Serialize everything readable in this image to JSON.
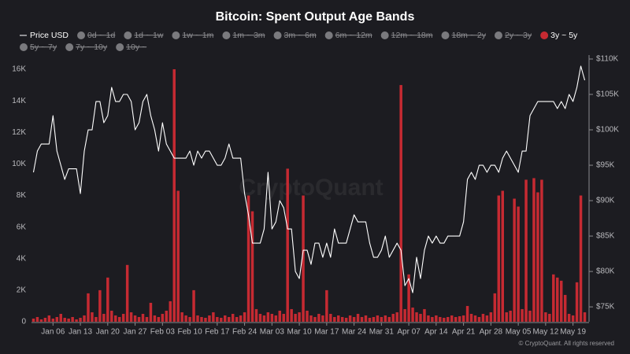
{
  "chart_data": {
    "type": "bar",
    "title": "Bitcoin: Spent Output Age Bands",
    "watermark": "CryptoQuant",
    "footer": "© CryptoQuant. All rights reserved",
    "grid": false,
    "categories": [
      null,
      null,
      null,
      null,
      null,
      "Jan 06",
      null,
      null,
      null,
      null,
      null,
      null,
      "Jan 13",
      null,
      null,
      null,
      null,
      null,
      null,
      "Jan 20",
      null,
      null,
      null,
      null,
      null,
      null,
      "Jan 27",
      null,
      null,
      null,
      null,
      null,
      null,
      "Feb 03",
      null,
      null,
      null,
      null,
      null,
      null,
      "Feb 10",
      null,
      null,
      null,
      null,
      null,
      null,
      "Feb 17",
      null,
      null,
      null,
      null,
      null,
      null,
      "Feb 24",
      null,
      null,
      null,
      null,
      null,
      null,
      "Mar 03",
      null,
      null,
      null,
      null,
      null,
      null,
      "Mar 10",
      null,
      null,
      null,
      null,
      null,
      null,
      "Mar 17",
      null,
      null,
      null,
      null,
      null,
      null,
      "Mar 24",
      null,
      null,
      null,
      null,
      null,
      null,
      "Mar 31",
      null,
      null,
      null,
      null,
      null,
      null,
      "Apr 07",
      null,
      null,
      null,
      null,
      null,
      null,
      "Apr 14",
      null,
      null,
      null,
      null,
      null,
      null,
      "Apr 21",
      null,
      null,
      null,
      null,
      null,
      null,
      "Apr 28",
      null,
      null,
      null,
      null,
      null,
      null,
      "May 05",
      null,
      null,
      null,
      null,
      null,
      null,
      "May 12",
      null,
      null,
      null,
      null,
      null,
      null,
      "May 19",
      null,
      null,
      null
    ],
    "ylim": [
      0,
      16650
    ],
    "yticks": [
      0,
      {
        "value": 2000,
        "label": "2K"
      },
      {
        "value": 4000,
        "label": "4K"
      },
      {
        "value": 6000,
        "label": "6K"
      },
      {
        "value": 8000,
        "label": "8K"
      },
      {
        "value": 10000,
        "label": "10K"
      },
      {
        "value": 12000,
        "label": "12K"
      },
      {
        "value": 14000,
        "label": "14K"
      },
      {
        "value": 16000,
        "label": "16K"
      }
    ],
    "y2lim": [
      72900,
      110000
    ],
    "y2ticks": [
      {
        "value": 75000,
        "label": "$75K"
      },
      {
        "value": 80000,
        "label": "$80K"
      },
      {
        "value": 85000,
        "label": "$85K"
      },
      {
        "value": 90000,
        "label": "$90K"
      },
      {
        "value": 95000,
        "label": "$95K"
      },
      {
        "value": 100000,
        "label": "$100K"
      },
      {
        "value": 105000,
        "label": "$105K"
      },
      {
        "value": 110000,
        "label": "$110K"
      }
    ],
    "series": [
      {
        "name": "Price USD",
        "type": "line",
        "axis": "y2",
        "color": "#ffffff",
        "visible": true,
        "values": [
          94000,
          97000,
          98000,
          98000,
          98000,
          102000,
          97000,
          95000,
          93000,
          94500,
          94500,
          94500,
          91000,
          97000,
          100000,
          100000,
          104000,
          104000,
          101000,
          102000,
          106000,
          104000,
          104000,
          105000,
          105000,
          104000,
          100000,
          101000,
          104000,
          105000,
          102000,
          100000,
          97000,
          101000,
          98000,
          97000,
          96000,
          96000,
          96000,
          96000,
          97000,
          95000,
          97000,
          96000,
          97000,
          97000,
          96000,
          95000,
          95000,
          96000,
          98000,
          96000,
          96000,
          96000,
          91000,
          88000,
          84000,
          84000,
          84000,
          86000,
          94000,
          86000,
          87000,
          90000,
          89000,
          86000,
          86000,
          80000,
          79000,
          83000,
          83000,
          81000,
          84000,
          84000,
          82000,
          84000,
          82000,
          86000,
          84000,
          84000,
          84000,
          86000,
          88000,
          87000,
          87000,
          87000,
          84000,
          82000,
          82000,
          83000,
          85000,
          82000,
          83000,
          84000,
          83000,
          78000,
          79000,
          77000,
          82000,
          79000,
          83000,
          85000,
          84000,
          85000,
          84000,
          84000,
          85000,
          85000,
          85000,
          85000,
          87000,
          93000,
          94000,
          93000,
          95000,
          95000,
          94000,
          95000,
          95000,
          94000,
          96000,
          97000,
          96000,
          95000,
          94000,
          97000,
          97000,
          102000,
          103000,
          104000,
          104000,
          104000,
          104000,
          104000,
          103000,
          104000,
          103000,
          105000,
          104000,
          106000,
          109000,
          107000
        ]
      },
      {
        "name": "0d ~ 1d",
        "color": "#8a8a8e",
        "visible": false
      },
      {
        "name": "1d ~ 1w",
        "color": "#8a8a8e",
        "visible": false
      },
      {
        "name": "1w ~ 1m",
        "color": "#8a8a8e",
        "visible": false
      },
      {
        "name": "1m ~ 3m",
        "color": "#8a8a8e",
        "visible": false
      },
      {
        "name": "3m ~ 6m",
        "color": "#8a8a8e",
        "visible": false
      },
      {
        "name": "6m ~ 12m",
        "color": "#8a8a8e",
        "visible": false
      },
      {
        "name": "12m ~ 18m",
        "color": "#8a8a8e",
        "visible": false
      },
      {
        "name": "18m ~ 2y",
        "color": "#8a8a8e",
        "visible": false
      },
      {
        "name": "2y ~ 3y",
        "color": "#8a8a8e",
        "visible": false
      },
      {
        "name": "3y ~ 5y",
        "type": "bar",
        "axis": "y",
        "color": "#c62a32",
        "visible": true,
        "values": [
          200,
          300,
          150,
          250,
          400,
          200,
          300,
          500,
          250,
          200,
          300,
          150,
          250,
          400,
          1800,
          600,
          300,
          2000,
          500,
          2800,
          700,
          400,
          300,
          500,
          3600,
          600,
          400,
          300,
          500,
          300,
          1200,
          400,
          300,
          500,
          700,
          1300,
          16000,
          8300,
          600,
          400,
          300,
          2000,
          400,
          300,
          250,
          400,
          600,
          300,
          250,
          400,
          300,
          500,
          300,
          400,
          600,
          8000,
          7000,
          800,
          500,
          400,
          600,
          500,
          400,
          700,
          500,
          9700,
          800,
          500,
          600,
          8000,
          700,
          400,
          300,
          500,
          400,
          2000,
          500,
          300,
          400,
          300,
          250,
          400,
          300,
          500,
          300,
          400,
          250,
          300,
          400,
          300,
          400,
          300,
          500,
          600,
          15000,
          800,
          3000,
          900,
          600,
          500,
          800,
          400,
          300,
          400,
          300,
          250,
          300,
          400,
          300,
          350,
          400,
          1000,
          500,
          400,
          300,
          500,
          400,
          600,
          1800,
          8000,
          8300,
          600,
          700,
          7800,
          7300,
          800,
          9000,
          700,
          9100,
          8200,
          9000,
          600,
          500,
          3000,
          2800,
          2600,
          1700,
          500,
          400,
          2500,
          8000,
          600
        ]
      },
      {
        "name": "5y ~ 7y",
        "color": "#8a8a8e",
        "visible": false
      },
      {
        "name": "7y ~ 10y",
        "color": "#8a8a8e",
        "visible": false
      },
      {
        "name": "10y ~",
        "color": "#8a8a8e",
        "visible": false
      }
    ]
  }
}
